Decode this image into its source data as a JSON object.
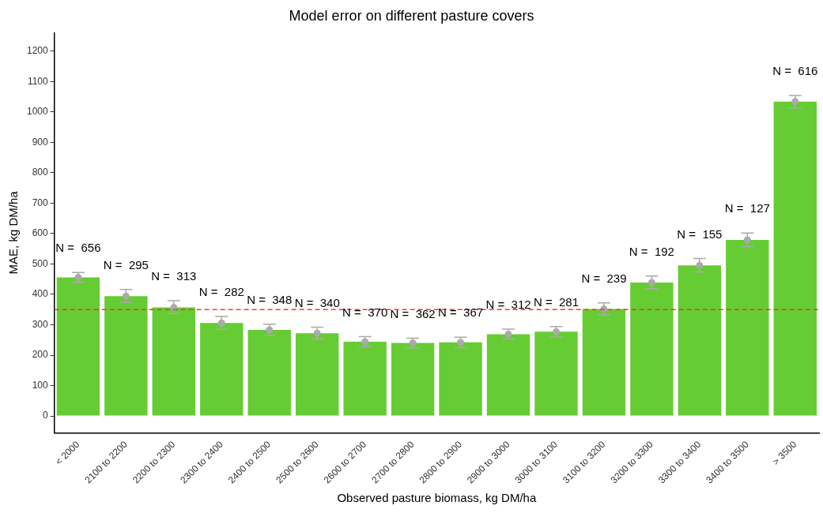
{
  "chart_data": {
    "type": "bar",
    "title": "Model error on different pasture covers",
    "xlabel": "Observed pasture biomass, kg DM/ha",
    "ylabel": "MAE, kg DM/ha",
    "categories": [
      "< 2000",
      "2100 to 2200",
      "2200 to 2300",
      "2300 to 2400",
      "2400 to 2500",
      "2500 to 2600",
      "2600 to 2700",
      "2700 to 2800",
      "2800 to 2900",
      "2900 to 3000",
      "3000 to 3100",
      "3100 to 3200",
      "3200 to 3300",
      "3300 to 3400",
      "3400 to 3500",
      "> 3500"
    ],
    "series": [
      {
        "color": "#66cc33",
        "values": [
          456,
          394,
          357,
          306,
          283,
          272,
          244,
          240,
          242,
          269,
          277,
          352,
          439,
          495,
          579,
          1034
        ]
      },
      {
        "type": "scatter",
        "color": "#aaaaaa",
        "x": [
          "< 2000",
          "2100 to 2200",
          "2200 to 2300",
          "2300 to 2400",
          "2400 to 2500",
          "2500 to 2600",
          "2600 to 2700",
          "2700 to 2800",
          "2800 to 2900",
          "2900 to 3000",
          "3000 to 3100",
          "3100 to 3200",
          "3200 to 3300",
          "3300 to 3400",
          "3400 to 3500",
          "> 3500"
        ],
        "values": [
          456,
          394,
          357,
          306,
          283,
          272,
          244,
          240,
          242,
          269,
          277,
          352,
          439,
          495,
          579,
          1034
        ],
        "errors": [
          [
            440,
            472
          ],
          [
            373,
            416
          ],
          [
            337,
            379
          ],
          [
            285,
            327
          ],
          [
            265,
            302
          ],
          [
            254,
            292
          ],
          [
            228,
            261
          ],
          [
            224,
            256
          ],
          [
            225,
            259
          ],
          [
            253,
            286
          ],
          [
            260,
            294
          ],
          [
            333,
            372
          ],
          [
            419,
            460
          ],
          [
            474,
            518
          ],
          [
            557,
            602
          ],
          [
            1013,
            1054
          ]
        ]
      }
    ],
    "ylim": [
      -55,
      1260
    ],
    "yticks": [
      0,
      100,
      200,
      300,
      400,
      500,
      600,
      700,
      800,
      900,
      1000,
      1100,
      1200
    ],
    "grid": false,
    "legend": false,
    "ref_lines": [
      {
        "axis": "y",
        "value": 350,
        "color": "#ff3333",
        "line_style": "dashed"
      }
    ],
    "annotations": [
      "N =  656",
      "N =  295",
      "N =  313",
      "N =  282",
      "N =  348",
      "N =  340",
      "N =  370",
      "N =  362",
      "N =  367",
      "N =  312",
      "N =  281",
      "N =  239",
      "N =  192",
      "N =  155",
      "N =  127",
      "N =  616"
    ]
  }
}
